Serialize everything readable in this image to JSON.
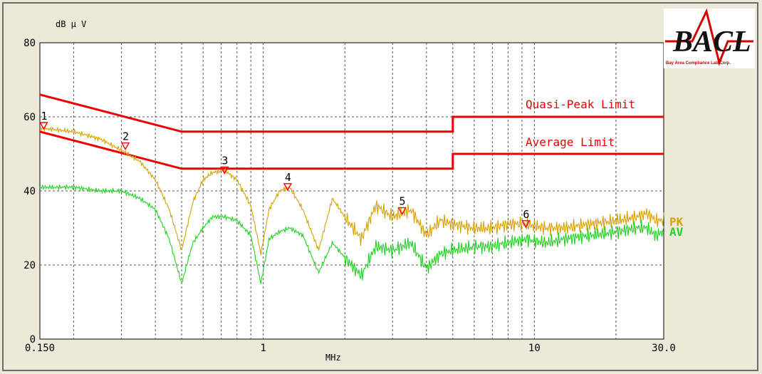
{
  "logo": {
    "text": "BACL",
    "tagline": "Bay Area Compliance Lab Corp."
  },
  "chart_data": {
    "type": "line",
    "title": "",
    "xlabel": "MHz",
    "ylabel": "dB μ V",
    "x_scale": "log",
    "xlim": [
      0.15,
      30.0
    ],
    "ylim": [
      0,
      80
    ],
    "grid": true,
    "x_ticks": [
      {
        "value": 0.15,
        "label": "0.150"
      },
      {
        "value": 1,
        "label": "1"
      },
      {
        "value": 10,
        "label": "10"
      },
      {
        "value": 30.0,
        "label": "30.0"
      }
    ],
    "y_ticks": [
      {
        "value": 0,
        "label": "0"
      },
      {
        "value": 20,
        "label": "20"
      },
      {
        "value": 40,
        "label": "40"
      },
      {
        "value": 60,
        "label": "60"
      },
      {
        "value": 80,
        "label": "80"
      }
    ],
    "limits": [
      {
        "name": "Quasi-Peak Limit",
        "color": "#ee0000",
        "x": [
          0.15,
          0.5,
          0.5,
          5.0,
          5.0,
          30.0
        ],
        "y": [
          66,
          56,
          56,
          56,
          60,
          60
        ]
      },
      {
        "name": "Average Limit",
        "color": "#ee0000",
        "x": [
          0.15,
          0.5,
          0.5,
          5.0,
          5.0,
          30.0
        ],
        "y": [
          56,
          46,
          46,
          46,
          50,
          50
        ]
      }
    ],
    "series": [
      {
        "name": "PK",
        "color": "#d7a000",
        "x": [
          0.15,
          0.2,
          0.25,
          0.3,
          0.35,
          0.4,
          0.45,
          0.5,
          0.55,
          0.6,
          0.65,
          0.72,
          0.8,
          0.9,
          0.98,
          1.05,
          1.15,
          1.25,
          1.4,
          1.6,
          1.8,
          2.0,
          2.3,
          2.6,
          3.0,
          3.5,
          4.0,
          4.5,
          5.0,
          6.0,
          7.0,
          8.0,
          9.3,
          11.0,
          13.0,
          16.0,
          20.0,
          24.0,
          26.0,
          28.0,
          30.0
        ],
        "y": [
          57,
          56,
          54,
          51,
          48,
          43,
          35,
          24,
          37,
          43,
          45,
          45.5,
          43,
          36,
          23,
          35,
          40,
          41,
          35,
          24,
          38,
          33,
          27,
          36,
          33,
          35,
          28,
          32,
          31,
          30,
          30,
          31,
          31,
          30,
          30,
          31,
          32,
          33,
          34,
          32,
          32
        ]
      },
      {
        "name": "AV",
        "color": "#22d122",
        "x": [
          0.15,
          0.2,
          0.25,
          0.3,
          0.35,
          0.4,
          0.45,
          0.5,
          0.55,
          0.6,
          0.65,
          0.72,
          0.8,
          0.9,
          0.98,
          1.05,
          1.15,
          1.25,
          1.4,
          1.6,
          1.8,
          2.0,
          2.3,
          2.6,
          3.0,
          3.5,
          4.0,
          4.5,
          5.0,
          6.0,
          7.0,
          8.0,
          9.3,
          11.0,
          13.0,
          16.0,
          20.0,
          24.0,
          26.0,
          28.0,
          30.0
        ],
        "y": [
          41,
          41,
          40,
          40,
          38,
          35,
          27,
          15,
          26,
          30,
          33,
          33,
          32,
          28,
          15,
          27,
          29,
          30,
          28,
          18,
          26,
          22,
          17,
          25,
          24,
          26,
          19,
          23,
          24,
          25,
          25,
          26,
          27,
          26,
          27,
          28,
          29,
          30,
          30,
          28,
          29
        ]
      }
    ],
    "markers": [
      {
        "label": "1",
        "x": 0.155,
        "y": 57.5
      },
      {
        "label": "2",
        "x": 0.31,
        "y": 52.0
      },
      {
        "label": "3",
        "x": 0.72,
        "y": 45.5
      },
      {
        "label": "4",
        "x": 1.23,
        "y": 41.0
      },
      {
        "label": "5",
        "x": 3.25,
        "y": 34.5
      },
      {
        "label": "6",
        "x": 9.3,
        "y": 31.0
      }
    ]
  }
}
